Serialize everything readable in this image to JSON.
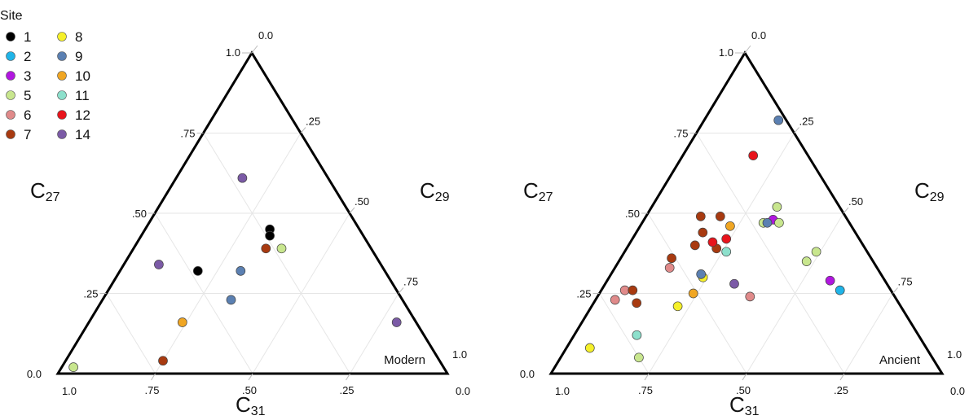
{
  "legend": {
    "title": "Site",
    "items": [
      {
        "site": "1",
        "color": "#000000"
      },
      {
        "site": "2",
        "color": "#1fb4e8"
      },
      {
        "site": "3",
        "color": "#b116e0"
      },
      {
        "site": "5",
        "color": "#c8e68e"
      },
      {
        "site": "6",
        "color": "#e08a8a"
      },
      {
        "site": "7",
        "color": "#a83a10"
      },
      {
        "site": "8",
        "color": "#f5f02a"
      },
      {
        "site": "9",
        "color": "#5b80b2"
      },
      {
        "site": "10",
        "color": "#f0a623"
      },
      {
        "site": "11",
        "color": "#8de0cc"
      },
      {
        "site": "12",
        "color": "#e8141c"
      },
      {
        "site": "14",
        "color": "#7b5aa6"
      }
    ]
  },
  "chart_data": [
    {
      "type": "scatter",
      "subtype": "ternary",
      "panel_label": "Modern",
      "axes": {
        "left": {
          "label": "C",
          "sub": "27"
        },
        "right": {
          "label": "C",
          "sub": "29"
        },
        "bottom": {
          "label": "C",
          "sub": "31"
        }
      },
      "ticks": {
        "left": [
          ".25",
          ".50",
          ".75"
        ],
        "right": [
          ".25",
          ".50",
          ".75"
        ],
        "bottom": [
          ".25",
          ".50",
          ".75"
        ]
      },
      "corner_labels": {
        "top_left": "1.0",
        "top_right": "0.0",
        "bottom_left_left": "0.0",
        "bottom_left_under": "1.0",
        "bottom_right_right": "1.0",
        "bottom_right_under": "0.0"
      },
      "points": [
        {
          "site": "1",
          "c27": 0.45,
          "c29": 0.32,
          "c31": 0.23
        },
        {
          "site": "1",
          "c27": 0.43,
          "c29": 0.33,
          "c31": 0.24
        },
        {
          "site": "1",
          "c27": 0.32,
          "c29": 0.2,
          "c31": 0.48
        },
        {
          "site": "5",
          "c27": 0.39,
          "c29": 0.38,
          "c31": 0.23
        },
        {
          "site": "5",
          "c27": 0.02,
          "c29": 0.03,
          "c31": 0.95
        },
        {
          "site": "7",
          "c27": 0.39,
          "c29": 0.34,
          "c31": 0.27
        },
        {
          "site": "7",
          "c27": 0.04,
          "c29": 0.25,
          "c31": 0.71
        },
        {
          "site": "9",
          "c27": 0.32,
          "c29": 0.31,
          "c31": 0.37
        },
        {
          "site": "9",
          "c27": 0.23,
          "c29": 0.33,
          "c31": 0.44
        },
        {
          "site": "10",
          "c27": 0.16,
          "c29": 0.24,
          "c31": 0.6
        },
        {
          "site": "14",
          "c27": 0.61,
          "c29": 0.17,
          "c31": 0.22
        },
        {
          "site": "14",
          "c27": 0.34,
          "c29": 0.09,
          "c31": 0.57
        },
        {
          "site": "14",
          "c27": 0.16,
          "c29": 0.79,
          "c31": 0.05
        }
      ]
    },
    {
      "type": "scatter",
      "subtype": "ternary",
      "panel_label": "Ancient",
      "axes": {
        "left": {
          "label": "C",
          "sub": "27"
        },
        "right": {
          "label": "C",
          "sub": "29"
        },
        "bottom": {
          "label": "C",
          "sub": "31"
        }
      },
      "ticks": {
        "left": [
          ".25",
          ".50",
          ".75"
        ],
        "right": [
          ".25",
          ".50",
          ".75"
        ],
        "bottom": [
          ".25",
          ".50",
          ".75"
        ]
      },
      "corner_labels": {
        "top_left": "1.0",
        "top_right": "0.0",
        "bottom_left_left": "0.0",
        "bottom_left_under": "1.0",
        "bottom_right_right": "1.0",
        "bottom_right_under": "0.0"
      },
      "points": [
        {
          "site": "2",
          "c27": 0.26,
          "c29": 0.61,
          "c31": 0.13
        },
        {
          "site": "3",
          "c27": 0.29,
          "c29": 0.57,
          "c31": 0.14
        },
        {
          "site": "3",
          "c27": 0.48,
          "c29": 0.33,
          "c31": 0.19
        },
        {
          "site": "5",
          "c27": 0.52,
          "c29": 0.32,
          "c31": 0.16
        },
        {
          "site": "5",
          "c27": 0.47,
          "c29": 0.31,
          "c31": 0.22
        },
        {
          "site": "5",
          "c27": 0.47,
          "c29": 0.35,
          "c31": 0.18
        },
        {
          "site": "5",
          "c27": 0.38,
          "c29": 0.49,
          "c31": 0.13
        },
        {
          "site": "5",
          "c27": 0.35,
          "c29": 0.48,
          "c31": 0.17
        },
        {
          "site": "5",
          "c27": 0.05,
          "c29": 0.2,
          "c31": 0.75
        },
        {
          "site": "6",
          "c27": 0.33,
          "c29": 0.14,
          "c31": 0.53
        },
        {
          "site": "6",
          "c27": 0.26,
          "c29": 0.06,
          "c31": 0.68
        },
        {
          "site": "6",
          "c27": 0.23,
          "c29": 0.05,
          "c31": 0.72
        },
        {
          "site": "6",
          "c27": 0.24,
          "c29": 0.39,
          "c31": 0.37
        },
        {
          "site": "7",
          "c27": 0.49,
          "c29": 0.14,
          "c31": 0.37
        },
        {
          "site": "7",
          "c27": 0.49,
          "c29": 0.19,
          "c31": 0.32
        },
        {
          "site": "7",
          "c27": 0.44,
          "c29": 0.17,
          "c31": 0.39
        },
        {
          "site": "7",
          "c27": 0.4,
          "c29": 0.17,
          "c31": 0.43
        },
        {
          "site": "7",
          "c27": 0.39,
          "c29": 0.23,
          "c31": 0.38
        },
        {
          "site": "7",
          "c27": 0.36,
          "c29": 0.13,
          "c31": 0.51
        },
        {
          "site": "7",
          "c27": 0.26,
          "c29": 0.08,
          "c31": 0.66
        },
        {
          "site": "7",
          "c27": 0.22,
          "c29": 0.11,
          "c31": 0.67
        },
        {
          "site": "8",
          "c27": 0.3,
          "c29": 0.24,
          "c31": 0.46
        },
        {
          "site": "8",
          "c27": 0.21,
          "c29": 0.22,
          "c31": 0.57
        },
        {
          "site": "8",
          "c27": 0.08,
          "c29": 0.06,
          "c31": 0.86
        },
        {
          "site": "9",
          "c27": 0.79,
          "c29": 0.19,
          "c31": 0.02
        },
        {
          "site": "9",
          "c27": 0.47,
          "c29": 0.32,
          "c31": 0.21
        },
        {
          "site": "9",
          "c27": 0.31,
          "c29": 0.23,
          "c31": 0.46
        },
        {
          "site": "10",
          "c27": 0.46,
          "c29": 0.23,
          "c31": 0.31
        },
        {
          "site": "10",
          "c27": 0.25,
          "c29": 0.24,
          "c31": 0.51
        },
        {
          "site": "11",
          "c27": 0.38,
          "c29": 0.26,
          "c31": 0.36
        },
        {
          "site": "11",
          "c27": 0.12,
          "c29": 0.16,
          "c31": 0.72
        },
        {
          "site": "12",
          "c27": 0.68,
          "c29": 0.18,
          "c31": 0.14
        },
        {
          "site": "12",
          "c27": 0.42,
          "c29": 0.24,
          "c31": 0.34
        },
        {
          "site": "12",
          "c27": 0.41,
          "c29": 0.21,
          "c31": 0.38
        },
        {
          "site": "14",
          "c27": 0.28,
          "c29": 0.33,
          "c31": 0.39
        }
      ]
    }
  ]
}
